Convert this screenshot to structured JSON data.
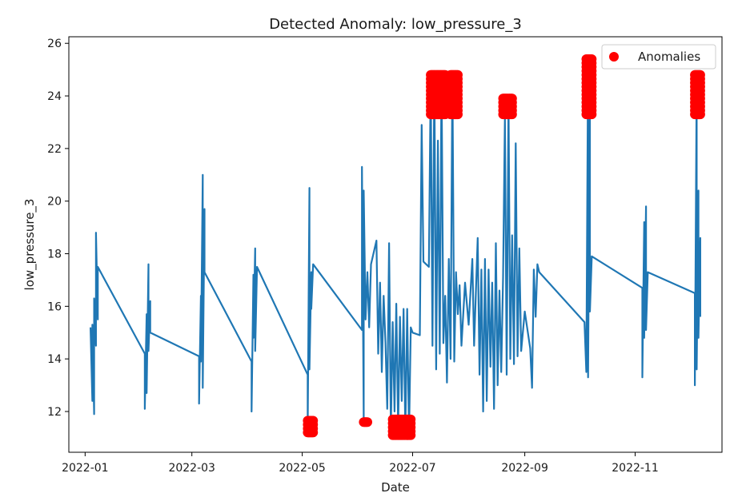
{
  "chart_data": {
    "type": "scatter",
    "title": "Detected Anomaly: low_pressure_3",
    "xlabel": "Date",
    "ylabel": "low_pressure_3",
    "x_ticks": [
      "2022-01",
      "2022-03",
      "2022-05",
      "2022-07",
      "2022-09",
      "2022-11"
    ],
    "y_ticks": [
      12,
      14,
      16,
      18,
      20,
      22,
      24,
      26
    ],
    "xlim": [
      "2021-12-23",
      "2022-12-19"
    ],
    "ylim": [
      10.45,
      26.25
    ],
    "legend": {
      "placement": "top-right",
      "entries": [
        "Anomalies"
      ]
    },
    "line_color": "#1f77b4",
    "anomaly_color": "#ff0000",
    "grid": false,
    "series": [
      {
        "kind": "line",
        "points": [
          [
            "2022-01-04",
            15.2
          ],
          [
            "2022-01-05",
            12.4
          ],
          [
            "2022-01-05",
            15.3
          ],
          [
            "2022-01-06",
            11.9
          ],
          [
            "2022-01-06",
            16.3
          ],
          [
            "2022-01-07",
            14.5
          ],
          [
            "2022-01-07",
            18.8
          ],
          [
            "2022-01-08",
            15.5
          ],
          [
            "2022-01-08",
            17.5
          ],
          [
            "2022-02-03",
            14.2
          ],
          [
            "2022-02-03",
            12.1
          ],
          [
            "2022-02-04",
            15.7
          ],
          [
            "2022-02-04",
            12.7
          ],
          [
            "2022-02-05",
            17.6
          ],
          [
            "2022-02-05",
            14.3
          ],
          [
            "2022-02-06",
            16.2
          ],
          [
            "2022-02-06",
            15.0
          ],
          [
            "2022-03-05",
            14.1
          ],
          [
            "2022-03-05",
            12.3
          ],
          [
            "2022-03-06",
            16.4
          ],
          [
            "2022-03-06",
            13.9
          ],
          [
            "2022-03-07",
            21.0
          ],
          [
            "2022-03-07",
            12.9
          ],
          [
            "2022-03-08",
            19.7
          ],
          [
            "2022-03-08",
            17.3
          ],
          [
            "2022-04-03",
            13.9
          ],
          [
            "2022-04-03",
            12.0
          ],
          [
            "2022-04-04",
            17.2
          ],
          [
            "2022-04-04",
            14.8
          ],
          [
            "2022-04-05",
            18.2
          ],
          [
            "2022-04-05",
            14.3
          ],
          [
            "2022-04-06",
            17.5
          ],
          [
            "2022-05-04",
            13.4
          ],
          [
            "2022-05-04",
            11.3
          ],
          [
            "2022-05-05",
            20.5
          ],
          [
            "2022-05-05",
            13.6
          ],
          [
            "2022-05-06",
            17.3
          ],
          [
            "2022-05-06",
            15.9
          ],
          [
            "2022-05-07",
            17.6
          ],
          [
            "2022-06-03",
            15.1
          ],
          [
            "2022-06-03",
            21.3
          ],
          [
            "2022-06-04",
            11.7
          ],
          [
            "2022-06-04",
            20.4
          ],
          [
            "2022-06-05",
            15.5
          ],
          [
            "2022-06-06",
            17.3
          ],
          [
            "2022-06-07",
            15.2
          ],
          [
            "2022-06-08",
            17.6
          ],
          [
            "2022-06-11",
            18.5
          ],
          [
            "2022-06-12",
            14.2
          ],
          [
            "2022-06-13",
            16.9
          ],
          [
            "2022-06-14",
            13.5
          ],
          [
            "2022-06-15",
            16.4
          ],
          [
            "2022-06-16",
            14.6
          ],
          [
            "2022-06-17",
            12.1
          ],
          [
            "2022-06-18",
            18.4
          ],
          [
            "2022-06-19",
            11.3
          ],
          [
            "2022-06-20",
            15.4
          ],
          [
            "2022-06-21",
            12.0
          ],
          [
            "2022-06-22",
            16.1
          ],
          [
            "2022-06-23",
            11.4
          ],
          [
            "2022-06-24",
            15.6
          ],
          [
            "2022-06-25",
            12.4
          ],
          [
            "2022-06-26",
            15.9
          ],
          [
            "2022-06-27",
            11.2
          ],
          [
            "2022-06-28",
            15.9
          ],
          [
            "2022-06-29",
            11.1
          ],
          [
            "2022-06-30",
            15.2
          ],
          [
            "2022-07-01",
            15.0
          ],
          [
            "2022-07-05",
            14.9
          ],
          [
            "2022-07-06",
            22.9
          ],
          [
            "2022-07-07",
            17.7
          ],
          [
            "2022-07-10",
            17.5
          ],
          [
            "2022-07-11",
            24.7
          ],
          [
            "2022-07-12",
            14.5
          ],
          [
            "2022-07-13",
            24.9
          ],
          [
            "2022-07-14",
            13.6
          ],
          [
            "2022-07-15",
            22.3
          ],
          [
            "2022-07-16",
            14.2
          ],
          [
            "2022-07-17",
            24.9
          ],
          [
            "2022-07-18",
            14.6
          ],
          [
            "2022-07-19",
            16.4
          ],
          [
            "2022-07-20",
            13.1
          ],
          [
            "2022-07-21",
            17.8
          ],
          [
            "2022-07-22",
            14.0
          ],
          [
            "2022-07-23",
            24.9
          ],
          [
            "2022-07-24",
            13.9
          ],
          [
            "2022-07-25",
            17.3
          ],
          [
            "2022-07-26",
            15.7
          ],
          [
            "2022-07-27",
            16.8
          ],
          [
            "2022-07-28",
            14.5
          ],
          [
            "2022-07-30",
            16.9
          ],
          [
            "2022-08-01",
            15.3
          ],
          [
            "2022-08-03",
            17.8
          ],
          [
            "2022-08-04",
            14.5
          ],
          [
            "2022-08-06",
            18.6
          ],
          [
            "2022-08-07",
            13.4
          ],
          [
            "2022-08-08",
            17.4
          ],
          [
            "2022-08-09",
            12.0
          ],
          [
            "2022-08-10",
            17.8
          ],
          [
            "2022-08-11",
            12.4
          ],
          [
            "2022-08-12",
            17.4
          ],
          [
            "2022-08-13",
            13.7
          ],
          [
            "2022-08-14",
            16.9
          ],
          [
            "2022-08-15",
            12.1
          ],
          [
            "2022-08-16",
            18.4
          ],
          [
            "2022-08-17",
            13.0
          ],
          [
            "2022-08-18",
            16.6
          ],
          [
            "2022-08-19",
            13.5
          ],
          [
            "2022-08-20",
            17.1
          ],
          [
            "2022-08-21",
            23.2
          ],
          [
            "2022-08-22",
            13.4
          ],
          [
            "2022-08-23",
            23.9
          ],
          [
            "2022-08-24",
            14.0
          ],
          [
            "2022-08-25",
            18.7
          ],
          [
            "2022-08-26",
            13.8
          ],
          [
            "2022-08-27",
            22.2
          ],
          [
            "2022-08-28",
            14.1
          ],
          [
            "2022-08-29",
            18.2
          ],
          [
            "2022-08-30",
            14.3
          ],
          [
            "2022-09-01",
            15.8
          ],
          [
            "2022-09-04",
            14.4
          ],
          [
            "2022-09-05",
            12.9
          ],
          [
            "2022-09-06",
            17.4
          ],
          [
            "2022-09-07",
            15.6
          ],
          [
            "2022-09-08",
            17.6
          ],
          [
            "2022-09-09",
            17.3
          ],
          [
            "2022-10-04",
            15.4
          ],
          [
            "2022-10-05",
            13.5
          ],
          [
            "2022-10-06",
            25.5
          ],
          [
            "2022-10-06",
            13.3
          ],
          [
            "2022-10-07",
            24.6
          ],
          [
            "2022-10-07",
            15.8
          ],
          [
            "2022-10-08",
            17.9
          ],
          [
            "2022-11-05",
            16.7
          ],
          [
            "2022-11-05",
            13.3
          ],
          [
            "2022-11-06",
            19.2
          ],
          [
            "2022-11-06",
            14.8
          ],
          [
            "2022-11-07",
            19.8
          ],
          [
            "2022-11-07",
            15.1
          ],
          [
            "2022-11-08",
            17.3
          ],
          [
            "2022-12-04",
            16.5
          ],
          [
            "2022-12-04",
            13.0
          ],
          [
            "2022-12-05",
            24.8
          ],
          [
            "2022-12-05",
            13.6
          ],
          [
            "2022-12-06",
            20.4
          ],
          [
            "2022-12-06",
            14.8
          ],
          [
            "2022-12-07",
            18.6
          ],
          [
            "2022-12-07",
            15.6
          ]
        ]
      },
      {
        "name": "Anomalies",
        "kind": "scatter",
        "clusters": [
          {
            "from": "2022-05-04",
            "to": "2022-05-07",
            "ymin": 11.2,
            "ymax": 11.7
          },
          {
            "from": "2022-06-04",
            "to": "2022-06-06",
            "ymin": 11.6,
            "ymax": 11.7
          },
          {
            "from": "2022-06-20",
            "to": "2022-06-30",
            "ymin": 11.1,
            "ymax": 11.7
          },
          {
            "from": "2022-07-11",
            "to": "2022-07-19",
            "ymin": 23.3,
            "ymax": 24.9
          },
          {
            "from": "2022-07-22",
            "to": "2022-07-26",
            "ymin": 23.3,
            "ymax": 24.9
          },
          {
            "from": "2022-08-20",
            "to": "2022-08-25",
            "ymin": 23.3,
            "ymax": 23.9
          },
          {
            "from": "2022-10-05",
            "to": "2022-10-08",
            "ymin": 23.3,
            "ymax": 25.5
          },
          {
            "from": "2022-12-04",
            "to": "2022-12-07",
            "ymin": 23.3,
            "ymax": 24.8
          }
        ]
      }
    ]
  }
}
